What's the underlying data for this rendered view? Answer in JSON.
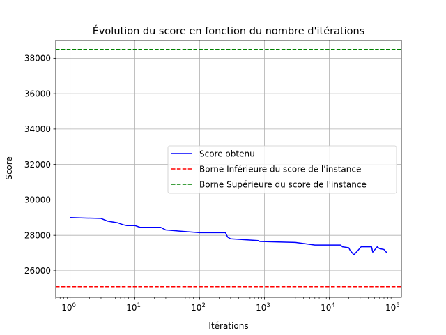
{
  "chart_data": {
    "type": "line",
    "title": "Évolution du score en fonction du nombre d'itérations",
    "xlabel": "Itérations",
    "ylabel": "Score",
    "xscale": "log",
    "xlim": [
      0.6,
      130000
    ],
    "ylim": [
      24500,
      39000
    ],
    "grid": true,
    "legend_position": "center-right",
    "x_ticks": [
      {
        "value": 1,
        "base": "10",
        "exp": "0"
      },
      {
        "value": 10,
        "base": "10",
        "exp": "1"
      },
      {
        "value": 100,
        "base": "10",
        "exp": "2"
      },
      {
        "value": 1000,
        "base": "10",
        "exp": "3"
      },
      {
        "value": 10000,
        "base": "10",
        "exp": "4"
      },
      {
        "value": 100000,
        "base": "10",
        "exp": "5"
      }
    ],
    "y_ticks": [
      {
        "value": 26000,
        "label": "26000"
      },
      {
        "value": 28000,
        "label": "28000"
      },
      {
        "value": 30000,
        "label": "30000"
      },
      {
        "value": 32000,
        "label": "32000"
      },
      {
        "value": 34000,
        "label": "34000"
      },
      {
        "value": 36000,
        "label": "36000"
      },
      {
        "value": 38000,
        "label": "38000"
      }
    ],
    "series": [
      {
        "name": "Score obtenu",
        "color": "#0000ff",
        "style": "solid",
        "x": [
          1,
          3,
          3.8,
          5.5,
          6.5,
          7.5,
          10,
          12,
          25,
          30,
          100,
          250,
          270,
          300,
          800,
          850,
          3000,
          6000,
          15000,
          16000,
          20000,
          21000,
          24000,
          27000,
          32000,
          33000,
          37000,
          45000,
          47000,
          55000,
          60000,
          70000,
          78000
        ],
        "y": [
          29000,
          28950,
          28800,
          28700,
          28600,
          28550,
          28550,
          28450,
          28450,
          28300,
          28150,
          28150,
          27900,
          27800,
          27700,
          27650,
          27600,
          27450,
          27450,
          27350,
          27300,
          27150,
          26900,
          27100,
          27400,
          27350,
          27350,
          27350,
          27050,
          27350,
          27250,
          27200,
          27000
        ]
      },
      {
        "name": "Borne Inférieure du score de l'instance",
        "color": "#ff0000",
        "style": "dashed",
        "y_constant": 25100
      },
      {
        "name": "Borne Supérieure du score de l'instance",
        "color": "#008000",
        "style": "dashed",
        "y_constant": 38500
      }
    ]
  }
}
